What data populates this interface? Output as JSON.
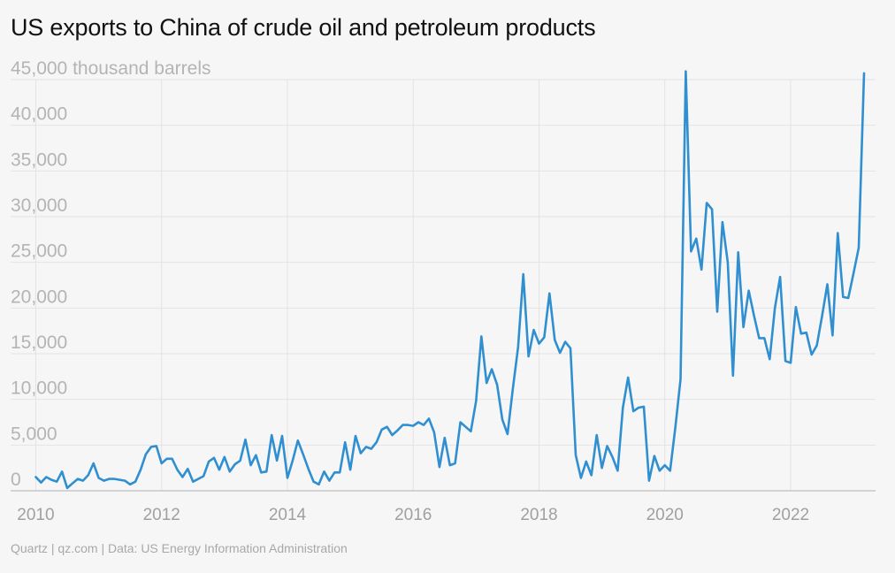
{
  "title": "US exports to China of crude oil and petroleum products",
  "source": "Quartz | qz.com | Data: US Energy Information Administration",
  "colors": {
    "line": "#2f8fd0",
    "grid": "#e3e3e3",
    "baseline": "#b0b0b0"
  },
  "chart_data": {
    "type": "line",
    "title": "US exports to China of crude oil and petroleum products",
    "ylabel": "thousand barrels",
    "ylim": [
      0,
      45000
    ],
    "xlim": [
      2009.6,
      2023.35
    ],
    "yticks": [
      0,
      5000,
      10000,
      15000,
      20000,
      25000,
      30000,
      35000,
      40000,
      45000
    ],
    "ytick_labels": [
      "0",
      "5,000",
      "10,000",
      "15,000",
      "20,000",
      "25,000",
      "30,000",
      "35,000",
      "40,000",
      "45,000 thousand barrels"
    ],
    "xticks": [
      2010,
      2012,
      2014,
      2016,
      2018,
      2020,
      2022
    ],
    "xtick_labels": [
      "2010",
      "2012",
      "2014",
      "2016",
      "2018",
      "2020",
      "2022"
    ],
    "grid": true,
    "x_start": "2010-01",
    "x_step": "month",
    "series": [
      {
        "values": [
          1500,
          900,
          1500,
          1200,
          1000,
          2100,
          300,
          800,
          1300,
          1100,
          1700,
          3000,
          1400,
          1100,
          1300,
          1300,
          1200,
          1100,
          700,
          1000,
          2300,
          4000,
          4800,
          4900,
          3000,
          3500,
          3500,
          2300,
          1500,
          2400,
          1000,
          1300,
          1600,
          3200,
          3600,
          2300,
          3700,
          2100,
          2900,
          3300,
          5600,
          2800,
          3900,
          2000,
          2100,
          6100,
          3300,
          6000,
          1400,
          3300,
          5500,
          4000,
          2400,
          1000,
          700,
          2100,
          1100,
          2000,
          2000,
          5300,
          2300,
          6000,
          4100,
          4800,
          4600,
          5300,
          6700,
          7000,
          6100,
          6600,
          7200,
          7200,
          7100,
          7500,
          7200,
          7900,
          6400,
          2600,
          5800,
          2800,
          3000,
          7500,
          7000,
          6500,
          9800,
          16900,
          11800,
          13300,
          11600,
          7800,
          6200,
          11100,
          15700,
          23700,
          14700,
          17600,
          16100,
          16800,
          21600,
          16500,
          15100,
          16300,
          15600,
          3900,
          1400,
          3200,
          1700,
          6100,
          2500,
          4900,
          3700,
          2200,
          9100,
          12400,
          8700,
          9100,
          9200,
          1100,
          3800,
          2200,
          2800,
          2200,
          6900,
          12200,
          45900,
          26200,
          27600,
          24200,
          31500,
          30800,
          19600,
          29400,
          25000,
          12600,
          26100,
          17900,
          21900,
          19200,
          16700,
          16700,
          14400,
          20000,
          23400,
          14200,
          14000,
          20100,
          17200,
          17300,
          14900,
          15900,
          19100,
          22600,
          17000,
          28200,
          21200,
          21100,
          23800,
          26600,
          45700
        ]
      }
    ]
  }
}
